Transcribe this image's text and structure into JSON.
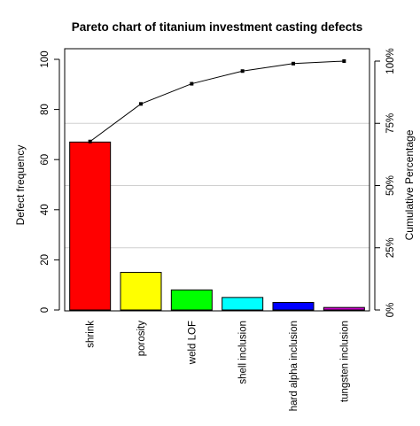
{
  "chart_data": {
    "type": "bar",
    "title": "Pareto chart of titanium investment casting defects",
    "xlabel": "",
    "ylabel": "Defect frequency",
    "y2label": "Cumulative Percentage",
    "ylim": [
      0,
      100
    ],
    "yticks": [
      0,
      20,
      40,
      60,
      80,
      100
    ],
    "y2ticks": [
      "0%",
      "25%",
      "50%",
      "75%",
      "100%"
    ],
    "y2ticks_values": [
      0,
      25,
      50,
      75,
      100
    ],
    "categories": [
      "shrink",
      "porosity",
      "weld LOF",
      "shell inclusion",
      "hard alpha inclusion",
      "tungsten inclusion"
    ],
    "values": [
      67,
      15,
      8,
      5,
      3,
      1
    ],
    "cumulative_percent": [
      67.7,
      82.8,
      90.9,
      96.0,
      99.0,
      100.0
    ],
    "colors": [
      "#ff0000",
      "#ffff00",
      "#00ff00",
      "#00ffff",
      "#0000ff",
      "#cc00cc"
    ],
    "grid": "horizontal at cumulative-percentage ticks",
    "legend": "none"
  }
}
